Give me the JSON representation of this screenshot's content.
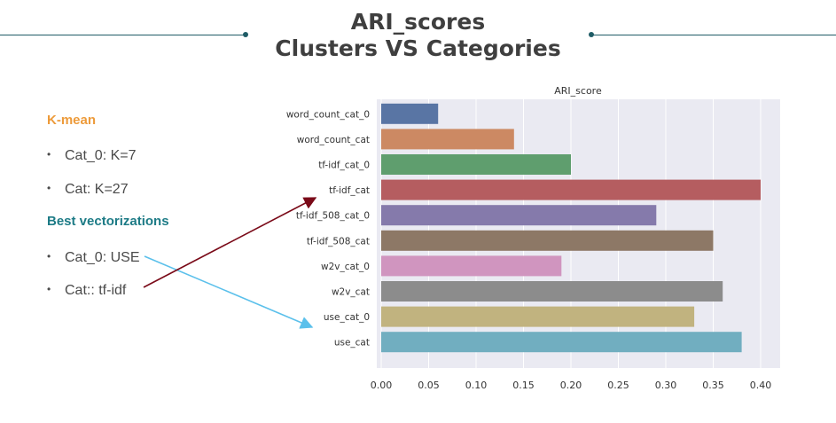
{
  "slide": {
    "title_line1": "ARI_scores",
    "title_line2": "Clusters VS Categories"
  },
  "left_panel": {
    "kmean_heading": "K-mean",
    "kmean_items": [
      "Cat_0: K=7",
      "Cat: K=27"
    ],
    "vect_heading": "Best vectorizations",
    "vect_items": [
      "Cat_0: USE",
      "Cat:: tf-idf"
    ],
    "colors": {
      "kmean": "#ed9b3b",
      "vect": "#1d7b86",
      "arrow_use": "#5bc0eb",
      "arrow_tfidf": "#7a0a18"
    }
  },
  "chart_data": {
    "type": "bar",
    "orientation": "horizontal",
    "title": "ARI_score",
    "categories": [
      "word_count_cat_0",
      "word_count_cat",
      "tf-idf_cat_0",
      "tf-idf_cat",
      "tf-idf_508_cat_0",
      "tf-idf_508_cat",
      "w2v_cat_0",
      "w2v_cat",
      "use_cat_0",
      "use_cat"
    ],
    "values": [
      0.06,
      0.14,
      0.2,
      0.4,
      0.29,
      0.35,
      0.19,
      0.36,
      0.33,
      0.38
    ],
    "colors": [
      "#5975a4",
      "#cc8963",
      "#5f9e6e",
      "#b55d60",
      "#857aab",
      "#8d7866",
      "#d095bf",
      "#8c8c8c",
      "#c1b37f",
      "#71aec0"
    ],
    "xlim": [
      0,
      0.42
    ],
    "xticks": [
      0.0,
      0.05,
      0.1,
      0.15,
      0.2,
      0.25,
      0.3,
      0.35,
      0.4
    ],
    "xtick_labels": [
      "0.00",
      "0.05",
      "0.10",
      "0.15",
      "0.20",
      "0.25",
      "0.30",
      "0.35",
      "0.40"
    ],
    "grid": true,
    "background": "#eaeaf2"
  }
}
